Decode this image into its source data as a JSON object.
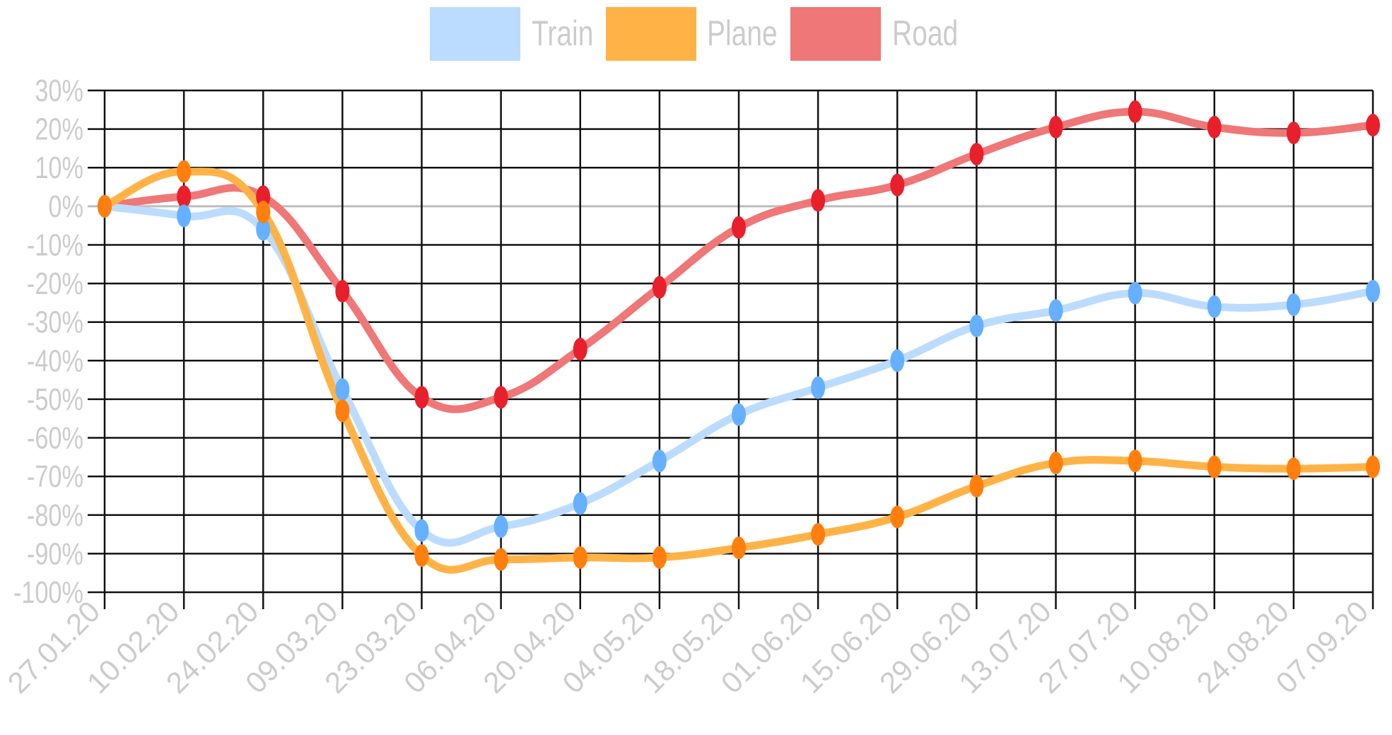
{
  "chart_data": {
    "type": "line",
    "title": "",
    "xlabel": "",
    "ylabel": "",
    "categories": [
      "27.01.20",
      "10.02.20",
      "24.02.20",
      "09.03.20",
      "23.03.20",
      "06.04.20",
      "20.04.20",
      "04.05.20",
      "18.05.20",
      "01.06.20",
      "15.06.20",
      "29.06.20",
      "13.07.20",
      "27.07.20",
      "10.08.20",
      "24.08.20",
      "07.09.20"
    ],
    "yticks": [
      "30%",
      "20%",
      "10%",
      "0%",
      "-10%",
      "-20%",
      "-30%",
      "-40%",
      "-50%",
      "-60%",
      "-70%",
      "-80%",
      "-90%",
      "-100%"
    ],
    "ylim": [
      -100,
      30
    ],
    "grid": true,
    "legend_position": "top-center",
    "series": [
      {
        "name": "Train",
        "line_color": "#bcdcff",
        "point_color": "#66b0ff",
        "values": [
          0,
          -2.5,
          -6,
          -47.5,
          -84,
          -83,
          -77,
          -66,
          -54,
          -47,
          -40,
          -31,
          -27,
          -22.5,
          -26,
          -25.5,
          -22
        ]
      },
      {
        "name": "Plane",
        "line_color": "#ffb347",
        "point_color": "#ff7f0e",
        "values": [
          0,
          9,
          -1.5,
          -53,
          -90.5,
          -91.5,
          -91,
          -91,
          -88.5,
          -85,
          -80.5,
          -72.5,
          -66.5,
          -66,
          -67.5,
          -68,
          -67.5
        ]
      },
      {
        "name": "Road",
        "line_color": "#ef7777",
        "point_color": "#e8202b",
        "values": [
          0,
          2.5,
          2.5,
          -22,
          -49.5,
          -49.5,
          -37,
          -21,
          -5.5,
          1.5,
          5.5,
          13.5,
          20.5,
          24.5,
          20.5,
          19,
          21
        ]
      }
    ]
  }
}
